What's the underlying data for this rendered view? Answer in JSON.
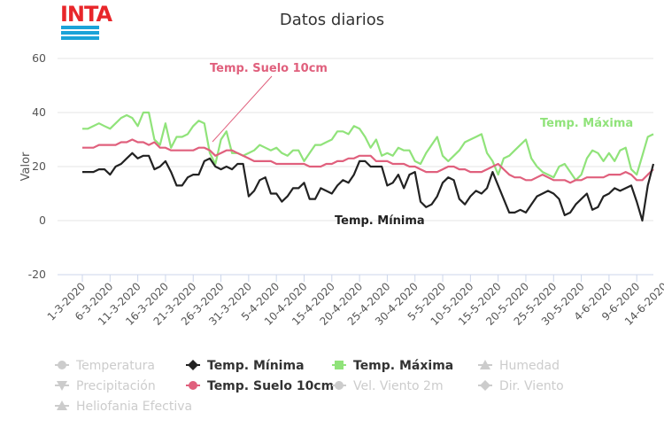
{
  "logo": {
    "text": "INTA"
  },
  "chart_data": {
    "type": "line",
    "title": "Datos diarios",
    "xlabel": "",
    "ylabel": "Valor",
    "ylim": [
      -20,
      60
    ],
    "yticks": [
      60,
      40,
      20,
      0,
      -20
    ],
    "grid": true,
    "legend_position": "bottom",
    "x_tick_labels": [
      "1-3-2020",
      "6-3-2020",
      "11-3-2020",
      "16-3-2020",
      "21-3-2020",
      "26-3-2020",
      "31-3-2020",
      "5-4-2020",
      "10-4-2020",
      "15-4-2020",
      "20-4-2020",
      "25-4-2020",
      "30-4-2020",
      "5-5-2020",
      "10-5-2020",
      "15-5-2020",
      "20-5-2020",
      "25-5-2020",
      "30-5-2020",
      "4-6-2020",
      "9-6-2020",
      "14-6-2020"
    ],
    "x_start": "2020-03-01",
    "series": [
      {
        "name": "Temp. Mínima",
        "color": "#222222",
        "values": [
          18,
          18,
          18,
          19,
          19,
          17,
          20,
          21,
          23,
          25,
          23,
          24,
          24,
          19,
          20,
          22,
          18,
          13,
          13,
          16,
          17,
          17,
          22,
          23,
          20,
          19,
          20,
          19,
          21,
          21,
          9,
          11,
          15,
          16,
          10,
          10,
          7,
          9,
          12,
          12,
          14,
          8,
          8,
          12,
          11,
          10,
          13,
          15,
          14,
          17,
          22,
          22,
          20,
          20,
          20,
          13,
          14,
          17,
          12,
          17,
          18,
          7,
          5,
          6,
          9,
          14,
          16,
          15,
          8,
          6,
          9,
          11,
          10,
          12,
          18,
          13,
          8,
          3,
          3,
          4,
          3,
          6,
          9,
          10,
          11,
          10,
          8,
          2,
          3,
          6,
          8,
          10,
          4,
          5,
          9,
          10,
          12,
          11,
          12,
          13,
          7,
          0,
          13,
          21
        ]
      },
      {
        "name": "Temp. Máxima",
        "color": "#90e37a",
        "values": [
          34,
          34,
          35,
          36,
          35,
          34,
          36,
          38,
          39,
          38,
          35,
          40,
          40,
          30,
          28,
          36,
          27,
          31,
          31,
          32,
          35,
          37,
          36,
          25,
          21,
          30,
          33,
          25,
          25,
          24,
          25,
          26,
          28,
          27,
          26,
          27,
          25,
          24,
          26,
          26,
          22,
          25,
          28,
          28,
          29,
          30,
          33,
          33,
          32,
          35,
          34,
          31,
          27,
          30,
          24,
          25,
          24,
          27,
          26,
          26,
          22,
          21,
          25,
          28,
          31,
          24,
          22,
          24,
          26,
          29,
          30,
          31,
          32,
          25,
          22,
          17,
          23,
          24,
          26,
          28,
          30,
          23,
          20,
          18,
          17,
          16,
          20,
          21,
          18,
          15,
          17,
          23,
          26,
          25,
          22,
          25,
          22,
          26,
          27,
          19,
          17,
          24,
          31,
          32
        ]
      },
      {
        "name": "Temp. Suelo 10cm",
        "color": "#e0607d",
        "values": [
          27,
          27,
          27,
          28,
          28,
          28,
          28,
          29,
          29,
          30,
          29,
          29,
          28,
          29,
          27,
          27,
          26,
          26,
          26,
          26,
          26,
          27,
          27,
          26,
          24,
          25,
          26,
          26,
          25,
          24,
          23,
          22,
          22,
          22,
          22,
          21,
          21,
          21,
          21,
          21,
          21,
          20,
          20,
          20,
          21,
          21,
          22,
          22,
          23,
          23,
          24,
          24,
          24,
          22,
          22,
          22,
          21,
          21,
          21,
          20,
          20,
          19,
          18,
          18,
          18,
          19,
          20,
          20,
          19,
          19,
          18,
          18,
          18,
          19,
          20,
          21,
          19,
          17,
          16,
          16,
          15,
          15,
          16,
          17,
          16,
          15,
          15,
          15,
          14,
          15,
          15,
          16,
          16,
          16,
          16,
          17,
          17,
          17,
          18,
          17,
          15,
          15,
          17,
          19
        ]
      }
    ],
    "annotations": [
      {
        "text": "Temp. Suelo 10cm",
        "color": "#e0607d"
      },
      {
        "text": "Temp. Máxima",
        "color": "#90e37a"
      },
      {
        "text": "Temp. Mínima",
        "color": "#222222"
      }
    ]
  },
  "legend": [
    {
      "label": "Temperatura",
      "symbol": "circle",
      "color": "#cccccc",
      "active": false
    },
    {
      "label": "Temp. Mínima",
      "symbol": "diamond",
      "color": "#222222",
      "active": true
    },
    {
      "label": "Temp. Máxima",
      "symbol": "square",
      "color": "#90e37a",
      "active": true
    },
    {
      "label": "Humedad",
      "symbol": "triangle-up",
      "color": "#cccccc",
      "active": false
    },
    {
      "label": "Precipitación",
      "symbol": "triangle-down",
      "color": "#cccccc",
      "active": false
    },
    {
      "label": "Temp. Suelo 10cm",
      "symbol": "circle",
      "color": "#e0607d",
      "active": true
    },
    {
      "label": "Vel. Viento 2m",
      "symbol": "circle",
      "color": "#cccccc",
      "active": false
    },
    {
      "label": "Dir. Viento",
      "symbol": "diamond",
      "color": "#cccccc",
      "active": false
    },
    {
      "label": "Heliofania Efectiva",
      "symbol": "triangle-up",
      "color": "#cccccc",
      "active": false
    }
  ]
}
